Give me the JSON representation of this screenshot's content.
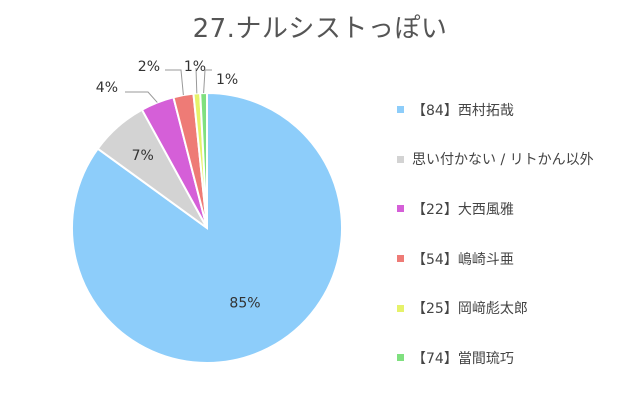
{
  "chart_data": {
    "type": "pie",
    "title": "27.ナルシストっぽい",
    "slices": [
      {
        "label": "【84】西村拓哉",
        "value": 85,
        "pct_label": "85%",
        "color": "#8dcdfa"
      },
      {
        "label": "思い付かない / リトかん以外",
        "value": 7,
        "pct_label": "7%",
        "color": "#d3d3d3"
      },
      {
        "label": "【22】大西風雅",
        "value": 4,
        "pct_label": "4%",
        "color": "#d55fd8"
      },
      {
        "label": "【54】嶋崎斗亜",
        "value": 2.4,
        "pct_label": "2%",
        "color": "#ee7b76"
      },
      {
        "label": "【25】岡﨑彪太郎",
        "value": 0.8,
        "pct_label": "1%",
        "color": "#e6f26a"
      },
      {
        "label": "【74】當間琉巧",
        "value": 0.8,
        "pct_label": "1%",
        "color": "#7fe07f"
      }
    ],
    "legend_position": "right"
  }
}
